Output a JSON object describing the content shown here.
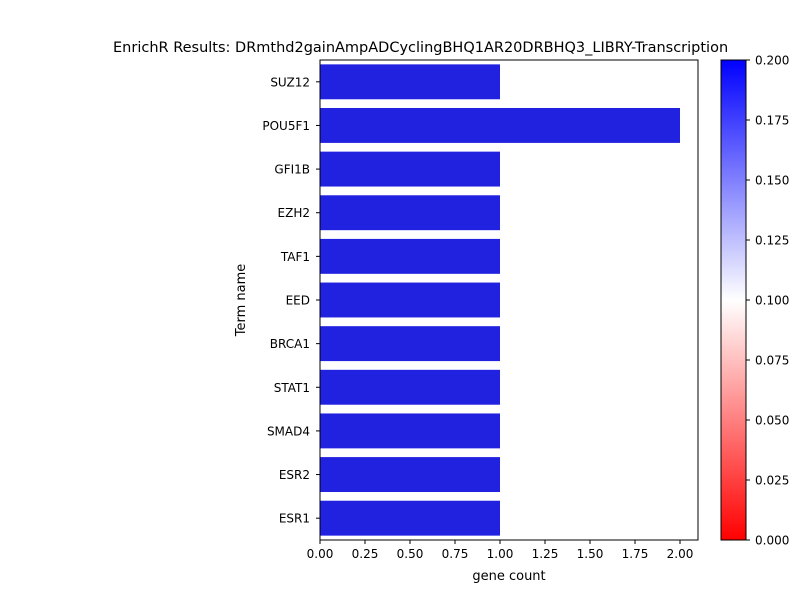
{
  "chart_data": {
    "type": "bar",
    "orientation": "horizontal",
    "title": "EnrichR Results: DRmthd2gainAmpADCyclingBHQ1AR20DRBHQ3_LIBRY-Transcription",
    "xlabel": "gene count",
    "ylabel": "Term name",
    "categories": [
      "SUZ12",
      "POU5F1",
      "GFI1B",
      "EZH2",
      "TAF1",
      "EED",
      "BRCA1",
      "STAT1",
      "SMAD4",
      "ESR2",
      "ESR1"
    ],
    "values": [
      1,
      2,
      1,
      1,
      1,
      1,
      1,
      1,
      1,
      1,
      1
    ],
    "bar_color": "#2121e0",
    "xlim": [
      0,
      2.1
    ],
    "xticks": [
      "0.00",
      "0.25",
      "0.50",
      "0.75",
      "1.00",
      "1.25",
      "1.50",
      "1.75",
      "2.00"
    ],
    "grid": false,
    "colorbar": {
      "range": [
        0.0,
        0.2
      ],
      "colors": [
        "#ff0000",
        "#ffffff",
        "#0000ff"
      ],
      "ticks": [
        "0.000",
        "0.025",
        "0.050",
        "0.075",
        "0.100",
        "0.125",
        "0.150",
        "0.175",
        "0.200"
      ]
    }
  }
}
